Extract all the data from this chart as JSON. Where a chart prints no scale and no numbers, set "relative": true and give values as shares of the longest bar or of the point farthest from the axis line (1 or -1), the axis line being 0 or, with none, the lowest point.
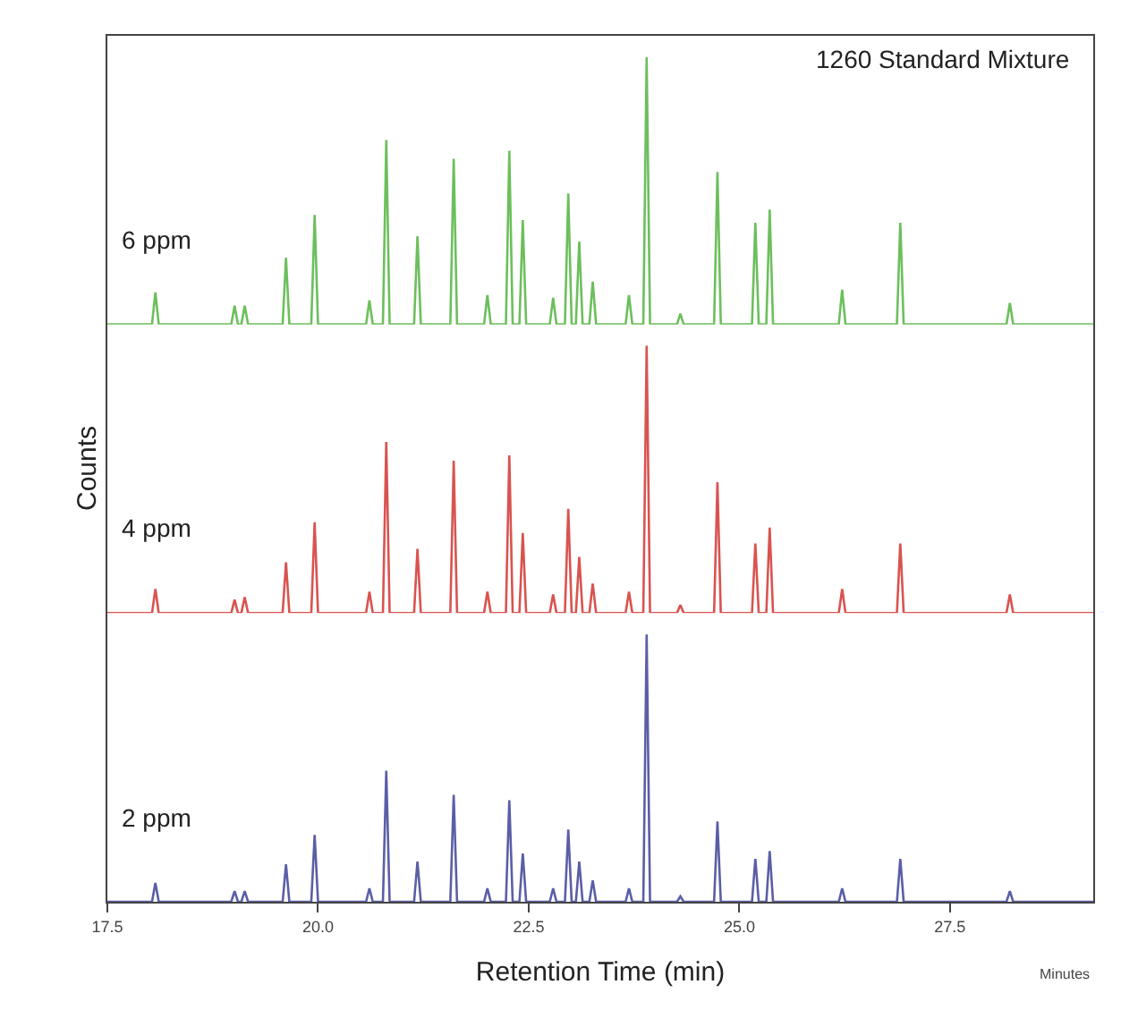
{
  "chart_data": [
    {
      "type": "line",
      "relative": true,
      "title": "1260 Standard Mixture",
      "tick_labels": false,
      "marker": "none",
      "line_style": "solid",
      "xlim": [
        17.5,
        29.2
      ],
      "x": [
        17.5,
        18.03,
        18.07,
        18.11,
        18.97,
        19.01,
        19.05,
        19.09,
        19.13,
        19.17,
        19.58,
        19.62,
        19.66,
        19.92,
        19.96,
        20.0,
        20.57,
        20.61,
        20.65,
        20.77,
        20.81,
        20.85,
        21.14,
        21.18,
        21.22,
        21.57,
        21.61,
        21.65,
        21.97,
        22.01,
        22.05,
        22.23,
        22.27,
        22.31,
        22.39,
        22.43,
        22.47,
        22.75,
        22.79,
        22.83,
        22.93,
        22.97,
        23.01,
        23.06,
        23.1,
        23.14,
        23.22,
        23.26,
        23.3,
        23.65,
        23.69,
        23.73,
        23.86,
        23.9,
        23.94,
        24.26,
        24.3,
        24.34,
        24.7,
        24.74,
        24.78,
        25.15,
        25.19,
        25.23,
        25.32,
        25.36,
        25.4,
        26.18,
        26.22,
        26.26,
        26.87,
        26.91,
        26.95,
        28.17,
        28.21,
        28.25,
        29.2
      ],
      "series": [
        {
          "name": "6 ppm",
          "color": "#6cbf5c",
          "values": [
            0,
            0,
            0.12,
            0,
            0,
            0.07,
            0,
            0,
            0.07,
            0,
            0,
            0.25,
            0,
            0,
            0.41,
            0,
            0,
            0.09,
            0,
            0,
            0.69,
            0,
            0,
            0.33,
            0,
            0,
            0.62,
            0,
            0,
            0.11,
            0,
            0,
            0.65,
            0,
            0,
            0.39,
            0,
            0,
            0.1,
            0,
            0,
            0.49,
            0,
            0,
            0.31,
            0,
            0,
            0.16,
            0,
            0,
            0.11,
            0,
            0,
            1,
            0,
            0,
            0.04,
            0,
            0,
            0.57,
            0,
            0,
            0.38,
            0,
            0,
            0.43,
            0,
            0,
            0.13,
            0,
            0,
            0.38,
            0,
            0,
            0.08,
            0,
            0
          ]
        }
      ]
    },
    {
      "type": "line",
      "relative": true,
      "ylabel": "Counts",
      "tick_labels": false,
      "marker": "none",
      "line_style": "solid",
      "xlim": [
        17.5,
        29.2
      ],
      "x": [
        17.5,
        18.03,
        18.07,
        18.11,
        18.97,
        19.01,
        19.05,
        19.09,
        19.13,
        19.17,
        19.58,
        19.62,
        19.66,
        19.92,
        19.96,
        20.0,
        20.57,
        20.61,
        20.65,
        20.77,
        20.81,
        20.85,
        21.14,
        21.18,
        21.22,
        21.57,
        21.61,
        21.65,
        21.97,
        22.01,
        22.05,
        22.23,
        22.27,
        22.31,
        22.39,
        22.43,
        22.47,
        22.75,
        22.79,
        22.83,
        22.93,
        22.97,
        23.01,
        23.06,
        23.1,
        23.14,
        23.22,
        23.26,
        23.3,
        23.65,
        23.69,
        23.73,
        23.86,
        23.9,
        23.94,
        24.26,
        24.3,
        24.34,
        24.7,
        24.74,
        24.78,
        25.15,
        25.19,
        25.23,
        25.32,
        25.36,
        25.4,
        26.18,
        26.22,
        26.26,
        26.87,
        26.91,
        26.95,
        28.17,
        28.21,
        28.25,
        29.2
      ],
      "series": [
        {
          "name": "4 ppm",
          "color": "#d9534f",
          "values": [
            0,
            0,
            0.09,
            0,
            0,
            0.05,
            0,
            0,
            0.06,
            0,
            0,
            0.19,
            0,
            0,
            0.34,
            0,
            0,
            0.08,
            0,
            0,
            0.64,
            0,
            0,
            0.24,
            0,
            0,
            0.57,
            0,
            0,
            0.08,
            0,
            0,
            0.59,
            0,
            0,
            0.3,
            0,
            0,
            0.07,
            0,
            0,
            0.39,
            0,
            0,
            0.21,
            0,
            0,
            0.11,
            0,
            0,
            0.08,
            0,
            0,
            1,
            0,
            0,
            0.03,
            0,
            0,
            0.49,
            0,
            0,
            0.26,
            0,
            0,
            0.32,
            0,
            0,
            0.09,
            0,
            0,
            0.26,
            0,
            0,
            0.07,
            0,
            0
          ]
        }
      ]
    },
    {
      "type": "line",
      "relative": true,
      "xlabel": "Retention Time (min)",
      "annotations": [
        "Minutes"
      ],
      "tick_labels": "x",
      "marker": "none",
      "line_style": "solid",
      "xlim": [
        17.5,
        29.2
      ],
      "xticks": [
        17.5,
        {
          "value": 20,
          "label": "20.0"
        },
        22.5,
        {
          "value": 25,
          "label": "25.0"
        },
        27.5
      ],
      "x": [
        17.5,
        18.03,
        18.07,
        18.11,
        18.97,
        19.01,
        19.05,
        19.09,
        19.13,
        19.17,
        19.58,
        19.62,
        19.66,
        19.92,
        19.96,
        20.0,
        20.57,
        20.61,
        20.65,
        20.77,
        20.81,
        20.85,
        21.14,
        21.18,
        21.22,
        21.57,
        21.61,
        21.65,
        21.97,
        22.01,
        22.05,
        22.23,
        22.27,
        22.31,
        22.39,
        22.43,
        22.47,
        22.75,
        22.79,
        22.83,
        22.93,
        22.97,
        23.01,
        23.06,
        23.1,
        23.14,
        23.22,
        23.26,
        23.3,
        23.65,
        23.69,
        23.73,
        23.86,
        23.9,
        23.94,
        24.26,
        24.3,
        24.34,
        24.7,
        24.74,
        24.78,
        25.15,
        25.19,
        25.23,
        25.32,
        25.36,
        25.4,
        26.18,
        26.22,
        26.26,
        26.87,
        26.91,
        26.95,
        28.17,
        28.21,
        28.25,
        29.2
      ],
      "series": [
        {
          "name": "2 ppm",
          "color": "#5b5ea6",
          "values": [
            0,
            0,
            0.07,
            0,
            0,
            0.04,
            0,
            0,
            0.04,
            0,
            0,
            0.14,
            0,
            0,
            0.25,
            0,
            0,
            0.05,
            0,
            0,
            0.49,
            0,
            0,
            0.15,
            0,
            0,
            0.4,
            0,
            0,
            0.05,
            0,
            0,
            0.38,
            0,
            0,
            0.18,
            0,
            0,
            0.05,
            0,
            0,
            0.27,
            0,
            0,
            0.15,
            0,
            0,
            0.08,
            0,
            0,
            0.05,
            0,
            0,
            1,
            0,
            0,
            0.02,
            0,
            0,
            0.3,
            0,
            0,
            0.16,
            0,
            0,
            0.19,
            0,
            0,
            0.05,
            0,
            0,
            0.16,
            0,
            0,
            0.04,
            0,
            0
          ]
        }
      ]
    }
  ]
}
